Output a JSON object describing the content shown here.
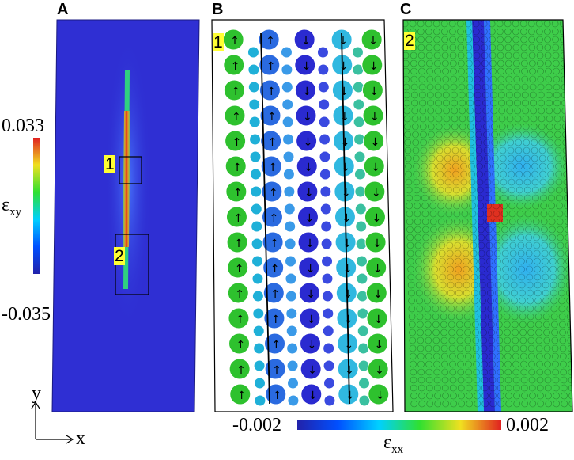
{
  "panel_labels": {
    "a": "A",
    "b": "B",
    "c": "C"
  },
  "panel_a": {
    "box_labels": [
      "1",
      "2"
    ],
    "colorbar": {
      "max": "0.033",
      "min": "-0.035",
      "symbol": "ε",
      "subscript": "xy"
    },
    "axes": {
      "x": "x",
      "y": "y"
    }
  },
  "panel_b": {
    "tag": "1"
  },
  "panel_c": {
    "tag": "2"
  },
  "bottom_colorbar": {
    "min": "-0.002",
    "max": "0.002",
    "symbol": "ε",
    "subscript": "xx"
  },
  "colors": {
    "matrix_blue": "#2a2ad0",
    "particle_green": "#2ec12e",
    "particle_blue": "#2a2ad0",
    "highlight_red": "#e03020",
    "tag_yellow": "#ffff33"
  }
}
